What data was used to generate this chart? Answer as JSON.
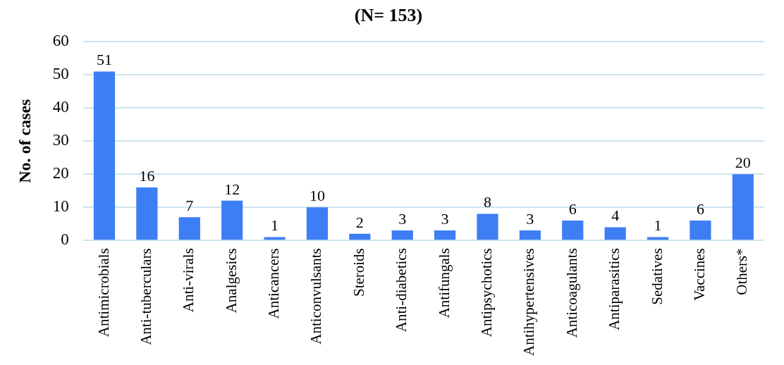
{
  "chart_data": {
    "type": "bar",
    "title": "(N= 153)",
    "ylabel": "No. of cases",
    "categories": [
      "Antimicrobials",
      "Anti-tuberculars",
      "Anti-virals",
      "Analgesics",
      "Anticancers",
      "Anticonvulsants",
      "Steroids",
      "Anti-diabetics",
      "Antifungals",
      "Antipsychotics",
      "Antihypertensives",
      "Anticoagulants",
      "Antiparasitics",
      "Sedatives",
      "Vaccines",
      "Others*"
    ],
    "values": [
      51,
      16,
      7,
      12,
      1,
      10,
      2,
      3,
      3,
      8,
      3,
      6,
      4,
      1,
      6,
      20
    ],
    "color": "#3d7ef5",
    "ylim": [
      0,
      60
    ],
    "yticks": [
      0,
      10,
      20,
      30,
      40,
      50,
      60
    ],
    "grid": "y",
    "data_labels": true,
    "legend": false
  }
}
